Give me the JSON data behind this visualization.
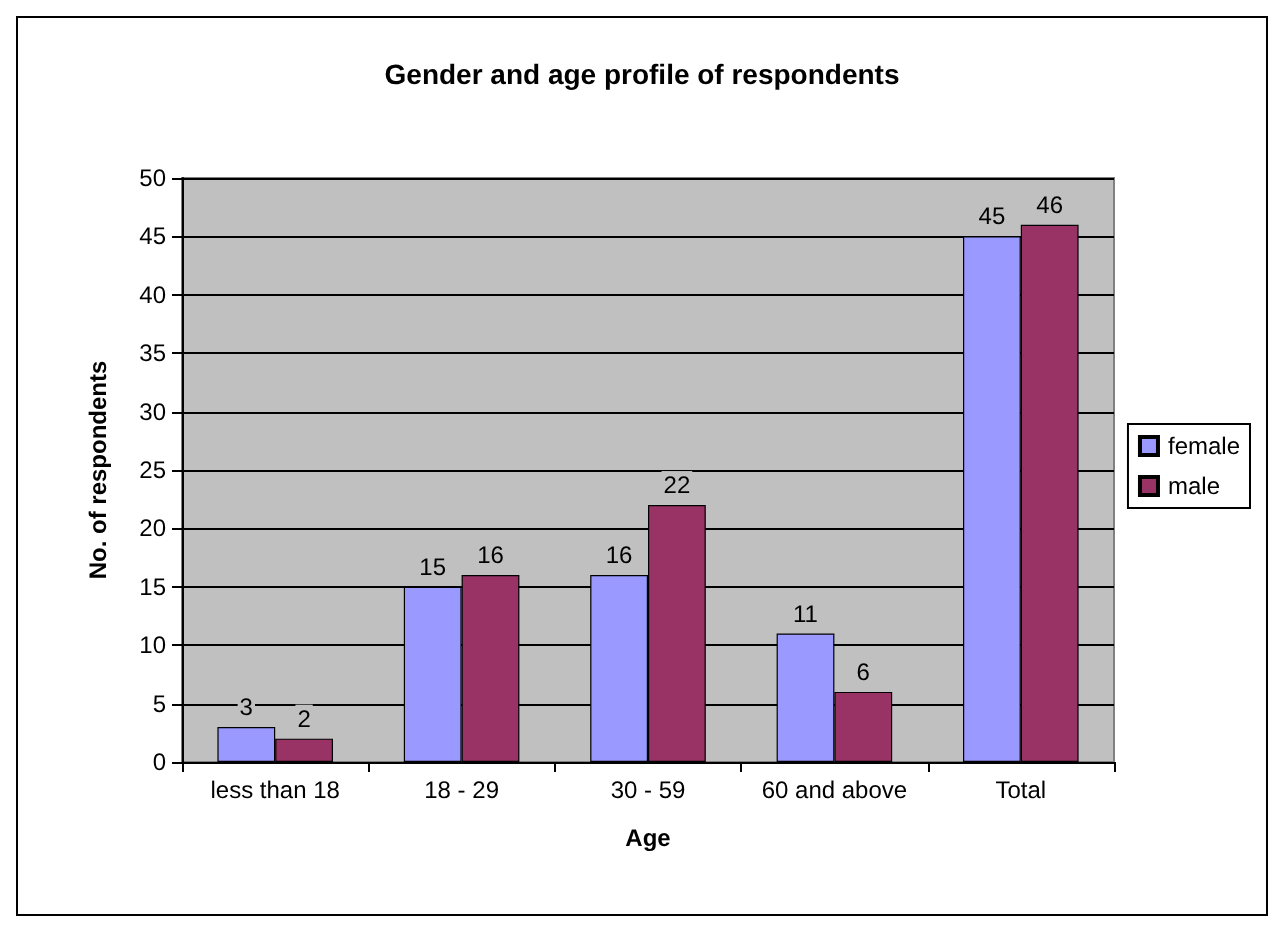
{
  "chart_data": {
    "type": "bar",
    "title": "Gender and age profile of respondents",
    "xlabel": "Age",
    "ylabel": "No. of respondents",
    "categories": [
      "less than 18",
      "18 - 29",
      "30 - 59",
      "60 and above",
      "Total"
    ],
    "series": [
      {
        "name": "female",
        "color": "#9999ff",
        "values": [
          3,
          15,
          16,
          11,
          45
        ]
      },
      {
        "name": "male",
        "color": "#993366",
        "values": [
          2,
          16,
          22,
          6,
          46
        ]
      }
    ],
    "ylim": [
      0,
      50
    ],
    "yticks": [
      0,
      5,
      10,
      15,
      20,
      25,
      30,
      35,
      40,
      45,
      50
    ],
    "grid": "y",
    "legend": "right",
    "data_labels": true
  }
}
